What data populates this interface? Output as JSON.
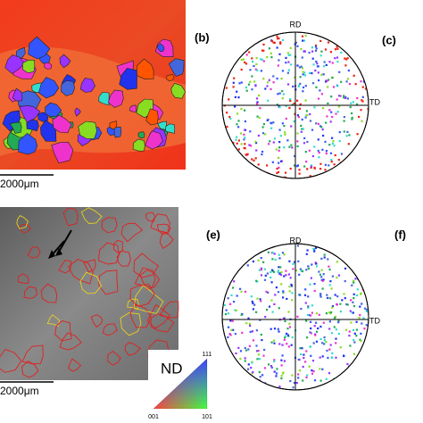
{
  "panels": [
    {
      "label": "(b)",
      "top": "RD",
      "right": "TD"
    },
    {
      "label": "(c)"
    },
    {
      "label": "(e)",
      "top": "RD",
      "right": "TD"
    },
    {
      "label": "(f)"
    }
  ],
  "scale_bars": [
    "2000μm",
    "2000μm"
  ],
  "legend": {
    "title": "ND",
    "corners": [
      "111",
      "001",
      "101"
    ]
  }
}
